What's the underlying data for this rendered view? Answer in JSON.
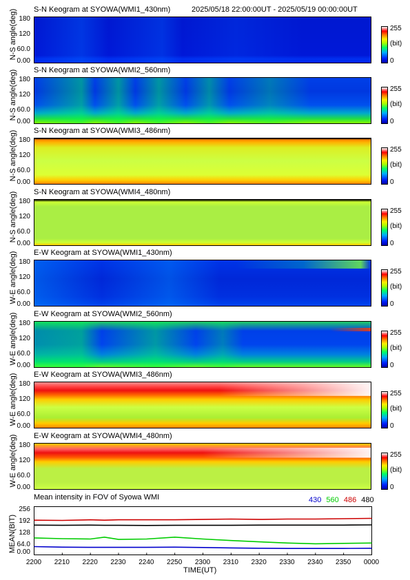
{
  "header": {
    "time_range": "2025/05/18 22:00:00UT - 2025/05/19 00:00:00UT"
  },
  "colorbar": {
    "max": "255",
    "unit": "(bit)",
    "min": "0"
  },
  "panels": [
    {
      "title": "S-N Keogram at SYOWA(WMI1_430nm)",
      "ylabel": "N-S angle(deg)",
      "ticks": [
        "180",
        "120",
        "60.0",
        "0.00"
      ],
      "style": "wmi1sn"
    },
    {
      "title": "S-N Keogram at SYOWA(WMI2_560nm)",
      "ylabel": "N-S angle(deg)",
      "ticks": [
        "180",
        "120",
        "60.0",
        "0.00"
      ],
      "style": "wmi2sn"
    },
    {
      "title": "S-N Keogram at SYOWA(WMI3_486nm)",
      "ylabel": "N-S angle(deg)",
      "ticks": [
        "180",
        "120",
        "60.0",
        "0.00"
      ],
      "style": "wmi3sn"
    },
    {
      "title": "S-N Keogram at SYOWA(WMI4_480nm)",
      "ylabel": "N-S angle(deg)",
      "ticks": [
        "180",
        "120",
        "60.0",
        "0.00"
      ],
      "style": "wmi4sn"
    },
    {
      "title": "E-W Keogram at SYOWA(WMI1_430nm)",
      "ylabel": "W-E angle(deg)",
      "ticks": [
        "180",
        "120",
        "60.0",
        "0.00"
      ],
      "style": "wmi1ew"
    },
    {
      "title": "E-W Keogram at SYOWA(WMI2_560nm)",
      "ylabel": "W-E angle(deg)",
      "ticks": [
        "180",
        "120",
        "60.0",
        "0.00"
      ],
      "style": "wmi2ew"
    },
    {
      "title": "E-W Keogram at SYOWA(WMI3_486nm)",
      "ylabel": "W-E angle(deg)",
      "ticks": [
        "180",
        "120",
        "60.0",
        "0.00"
      ],
      "style": "wmi3ew"
    },
    {
      "title": "E-W Keogram at SYOWA(WMI4_480nm)",
      "ylabel": "W-E angle(deg)",
      "ticks": [
        "180",
        "120",
        "60.0",
        "0.00"
      ],
      "style": "wmi4ew"
    }
  ],
  "chart_data": {
    "type": "line",
    "title": "Mean intensity in FOV of Syowa WMI",
    "xlabel": "TIME(UT)",
    "ylabel": "MEAN(BIT)",
    "ylim": [
      0,
      256
    ],
    "yticks": [
      "256",
      "192",
      "128",
      "64.0",
      "0.00"
    ],
    "xtick_labels": [
      "2200",
      "2210",
      "2220",
      "2230",
      "2240",
      "2250",
      "2300",
      "2310",
      "2320",
      "2330",
      "2340",
      "2350",
      "0000"
    ],
    "x": [
      0,
      10,
      20,
      25,
      30,
      40,
      50,
      60,
      70,
      80,
      90,
      100,
      110,
      120
    ],
    "series": [
      {
        "name": "430",
        "color": "#0000cc",
        "values": [
          44,
          41,
          40,
          40,
          40,
          40,
          41,
          39,
          37,
          35,
          34,
          34,
          34,
          35
        ]
      },
      {
        "name": "560",
        "color": "#00cc00",
        "values": [
          90,
          86,
          84,
          94,
          82,
          84,
          94,
          84,
          76,
          69,
          63,
          59,
          61,
          63
        ]
      },
      {
        "name": "486",
        "color": "#cc0000",
        "values": [
          184,
          183,
          186,
          184,
          186,
          186,
          186,
          188,
          190,
          188,
          190,
          190,
          192,
          194
        ]
      },
      {
        "name": "480",
        "color": "#000000",
        "values": [
          158,
          157,
          158,
          157,
          157,
          156,
          157,
          157,
          157,
          158,
          158,
          158,
          158,
          159
        ]
      }
    ]
  }
}
